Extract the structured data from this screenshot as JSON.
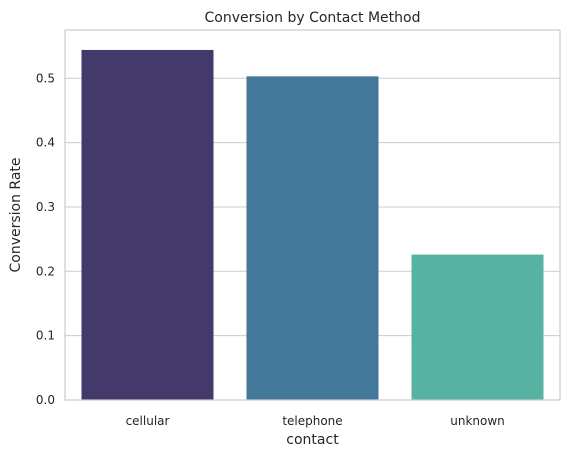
{
  "chart_data": {
    "type": "bar",
    "title": "Conversion by Contact Method",
    "xlabel": "contact",
    "ylabel": "Conversion Rate",
    "categories": [
      "cellular",
      "telephone",
      "unknown"
    ],
    "values": [
      0.544,
      0.503,
      0.226
    ],
    "colors": [
      "#433a6b",
      "#42789a",
      "#56b3a1"
    ],
    "ylim": [
      0,
      0.575
    ],
    "yticks": [
      0.0,
      0.1,
      0.2,
      0.3,
      0.4,
      0.5
    ],
    "ytick_labels": [
      "0.0",
      "0.1",
      "0.2",
      "0.3",
      "0.4",
      "0.5"
    ],
    "grid": "horizontal",
    "legend": "none"
  }
}
